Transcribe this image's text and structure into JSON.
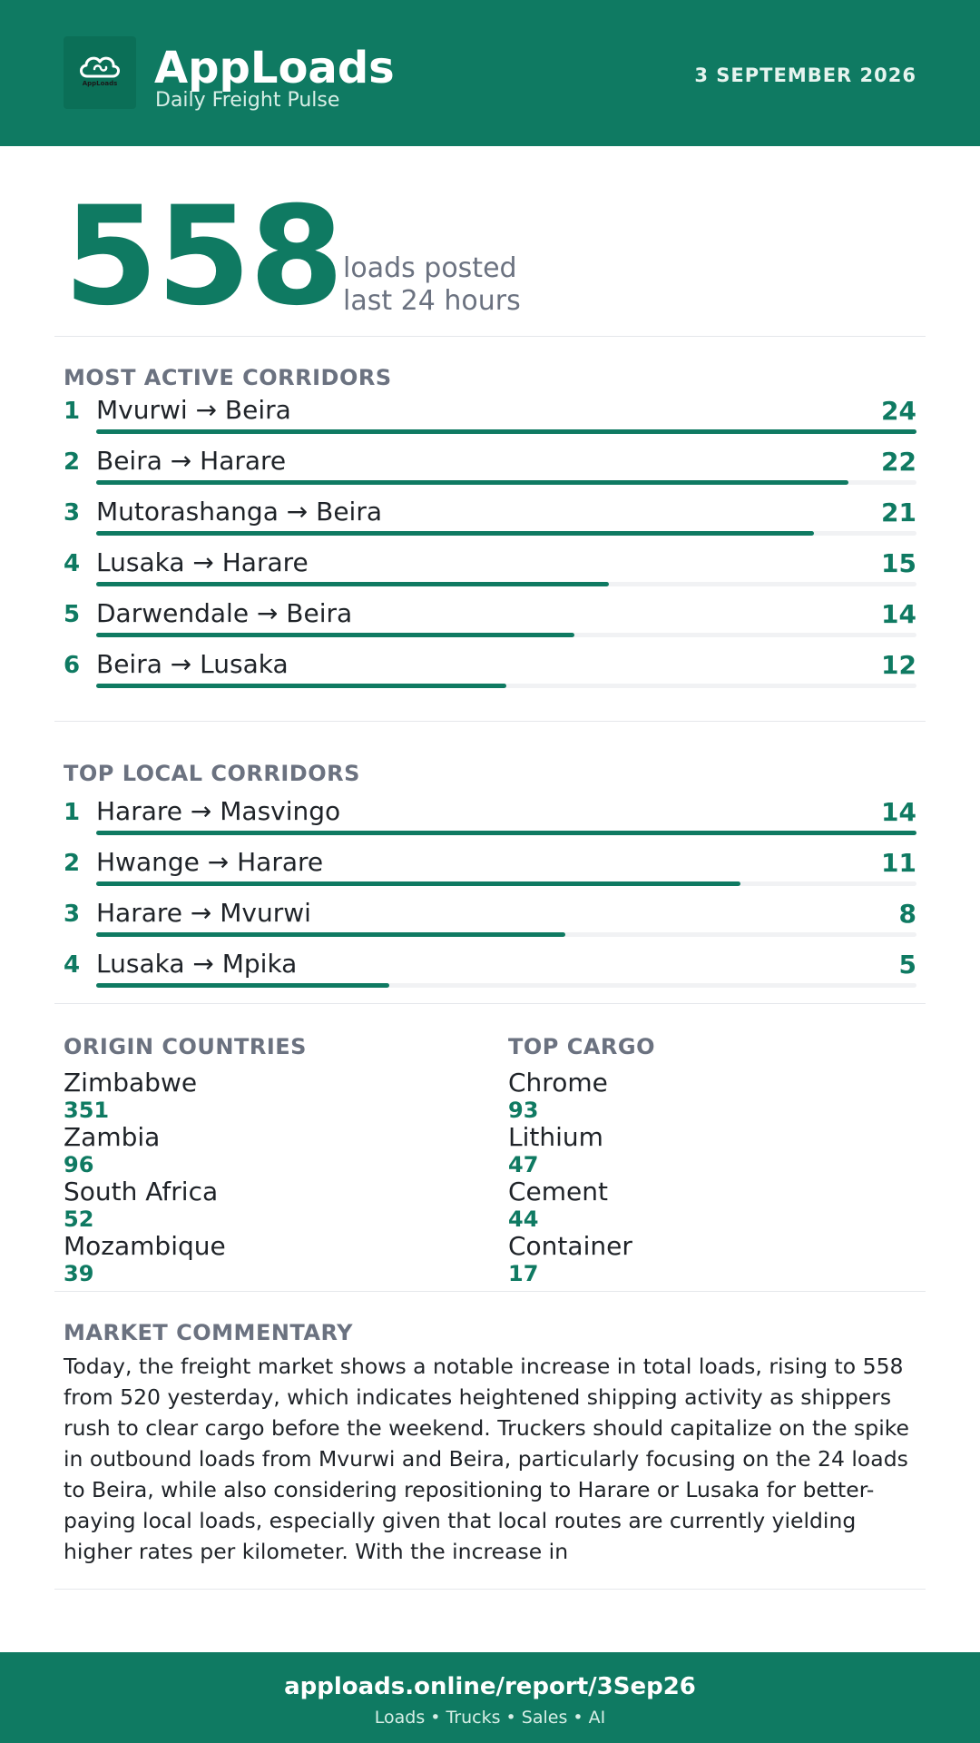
{
  "app": {
    "logo_text": "AppLoads",
    "name": "AppLoads",
    "tagline": "Daily Freight Pulse",
    "date": "3 SEPTEMBER 2026"
  },
  "headline": {
    "value": "558",
    "caption_line1": "loads posted",
    "caption_line2": "last 24 hours"
  },
  "most_active": {
    "title": "MOST ACTIVE CORRIDORS",
    "max": 24,
    "items": [
      {
        "rank": "1",
        "route": "Mvurwi → Beira",
        "count": 24
      },
      {
        "rank": "2",
        "route": "Beira → Harare",
        "count": 22
      },
      {
        "rank": "3",
        "route": "Mutorashanga → Beira",
        "count": 21
      },
      {
        "rank": "4",
        "route": "Lusaka → Harare",
        "count": 15
      },
      {
        "rank": "5",
        "route": "Darwendale → Beira",
        "count": 14
      },
      {
        "rank": "6",
        "route": "Beira → Lusaka",
        "count": 12
      }
    ]
  },
  "top_local": {
    "title": "TOP LOCAL CORRIDORS",
    "max": 14,
    "items": [
      {
        "rank": "1",
        "route": "Harare → Masvingo",
        "count": 14
      },
      {
        "rank": "2",
        "route": "Hwange → Harare",
        "count": 11
      },
      {
        "rank": "3",
        "route": "Harare → Mvurwi",
        "count": 8
      },
      {
        "rank": "4",
        "route": "Lusaka → Mpika",
        "count": 5
      }
    ]
  },
  "origin_countries": {
    "title": "ORIGIN COUNTRIES",
    "items": [
      {
        "name": "Zimbabwe",
        "value": "351"
      },
      {
        "name": "Zambia",
        "value": "96"
      },
      {
        "name": "South Africa",
        "value": "52"
      },
      {
        "name": "Mozambique",
        "value": "39"
      }
    ]
  },
  "top_cargo": {
    "title": "TOP CARGO",
    "items": [
      {
        "name": "Chrome",
        "value": "93"
      },
      {
        "name": "Lithium",
        "value": "47"
      },
      {
        "name": "Cement",
        "value": "44"
      },
      {
        "name": "Container",
        "value": "17"
      }
    ]
  },
  "commentary": {
    "title": "MARKET COMMENTARY",
    "text": "Today, the freight market shows a notable increase in total loads, rising to 558 from 520 yesterday, which indicates heightened shipping activity as shippers rush to clear cargo before the weekend. Truckers should capitalize on the spike in outbound loads from Mvurwi and Beira, particularly focusing on the 24 loads to Beira, while also considering repositioning to Harare or Lusaka for better-paying local loads, especially given that local routes are currently yielding higher rates per kilometer. With the increase in"
  },
  "footer": {
    "url": "apploads.online/report/3Sep26",
    "sub": "Loads • Trucks • Sales • AI"
  },
  "colors": {
    "brand": "#0f7a62",
    "muted": "#6b7280",
    "track": "#f1f2f4"
  }
}
